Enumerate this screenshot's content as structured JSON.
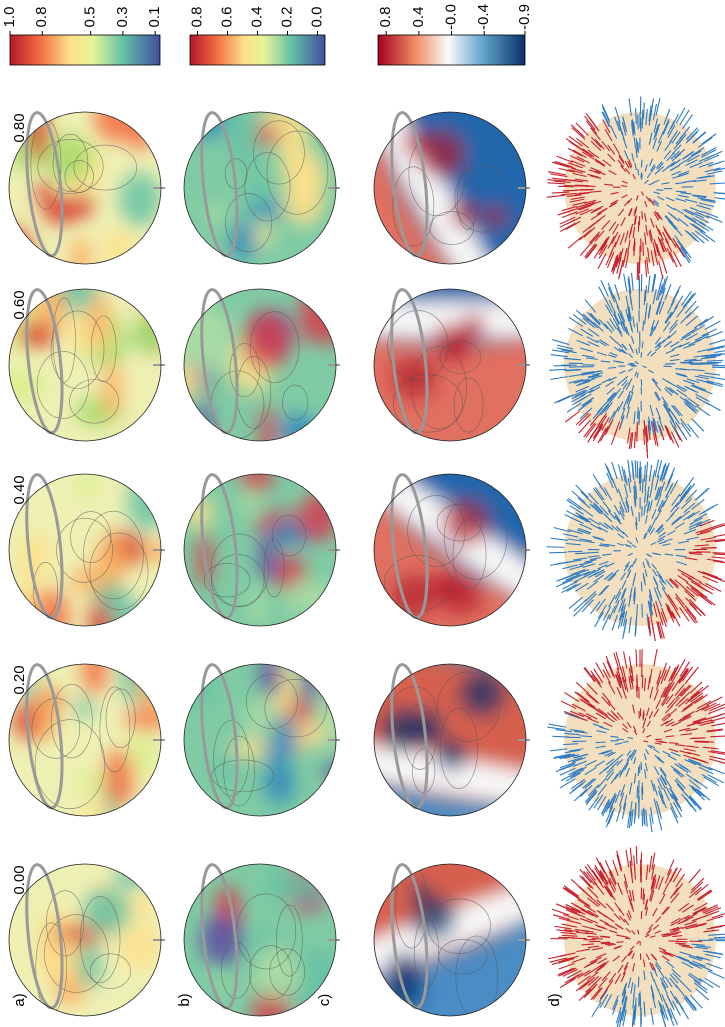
{
  "rows": [
    {
      "label": "a)"
    },
    {
      "label": "b)"
    },
    {
      "label": "c)"
    },
    {
      "label": "d)"
    }
  ],
  "columns": [
    "0.00",
    "0.20",
    "0.40",
    "0.60",
    "0.80"
  ],
  "colorbars": [
    {
      "lim": [
        1.0,
        0.07
      ],
      "ticks": [
        {
          "value": 1.0,
          "label": "1.0"
        },
        {
          "value": 0.8,
          "label": "0.8"
        },
        {
          "value": 0.5,
          "label": "0.5"
        },
        {
          "value": 0.3,
          "label": "0.3"
        },
        0.1
      ]
    },
    {
      "lim": [
        0.85,
        -0.05
      ],
      "ticks": [
        0.8,
        0.6,
        0.4,
        0.2,
        {
          "value": 0,
          "label": "0.0"
        }
      ]
    },
    {
      "lim": [
        0.9,
        -0.9
      ],
      "ticks": [
        0.8,
        0.4,
        {
          "value": 0,
          "label": "-0.0"
        },
        -0.4,
        -0.9
      ]
    }
  ]
}
